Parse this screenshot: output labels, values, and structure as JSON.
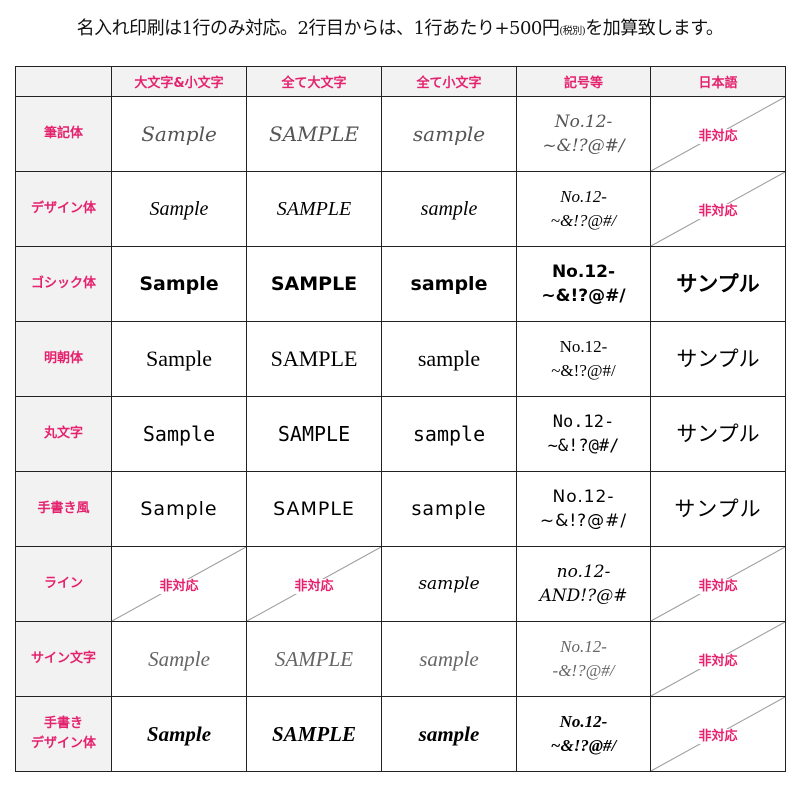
{
  "title": {
    "main": "名入れ印刷は1行のみ対応。2行目からは、1行あたり+500円",
    "tax": "(税別)",
    "tail": "を加算致します。"
  },
  "colors": {
    "accent": "#e4226e",
    "label_bg": "#f2f2f2"
  },
  "columns": [
    "",
    "大文字&小文字",
    "全て大文字",
    "全て小文字",
    "記号等",
    "日本語"
  ],
  "not_supported": "非対応",
  "rows": [
    {
      "label": "筆記体",
      "style": "script1",
      "cells": [
        "Sample",
        "SAMPLE",
        "sample",
        "No.12-\n~&!?@#/",
        null
      ]
    },
    {
      "label": "デザイン体",
      "style": "script2",
      "cells": [
        "Sample",
        "SAMPLE",
        "sample",
        "No.12-\n~&!?@#/",
        null
      ]
    },
    {
      "label": "ゴシック体",
      "style": "gothic",
      "cells": [
        "Sample",
        "SAMPLE",
        "sample",
        "No.12-\n~&!?@#/",
        "サンプル"
      ]
    },
    {
      "label": "明朝体",
      "style": "mincho",
      "cells": [
        "Sample",
        "SAMPLE",
        "sample",
        "No.12-\n~&!?@#/",
        "サンプル"
      ]
    },
    {
      "label": "丸文字",
      "style": "maru",
      "cells": [
        "Sample",
        "SAMPLE",
        "sample",
        "No.12-\n~&!?@#/",
        "サンプル"
      ]
    },
    {
      "label": "手書き風",
      "style": "hand",
      "cells": [
        "Sample",
        "SAMPLE",
        "sample",
        "No.12-\n~&!?@#/",
        "サンプル"
      ]
    },
    {
      "label": "ライン",
      "style": "line",
      "cells": [
        null,
        null,
        "sample",
        "no.12-\nAND!?@#",
        null
      ]
    },
    {
      "label": "サイン文字",
      "style": "sign",
      "cells": [
        "Sample",
        "SAMPLE",
        "sample",
        "No.12-\n-&!?@#/",
        null
      ]
    },
    {
      "label": "手書き\nデザイン体",
      "style": "hdesign",
      "cells": [
        "Sample",
        "SAMPLE",
        "sample",
        "No.12-\n~&!?@#/",
        null
      ]
    }
  ]
}
